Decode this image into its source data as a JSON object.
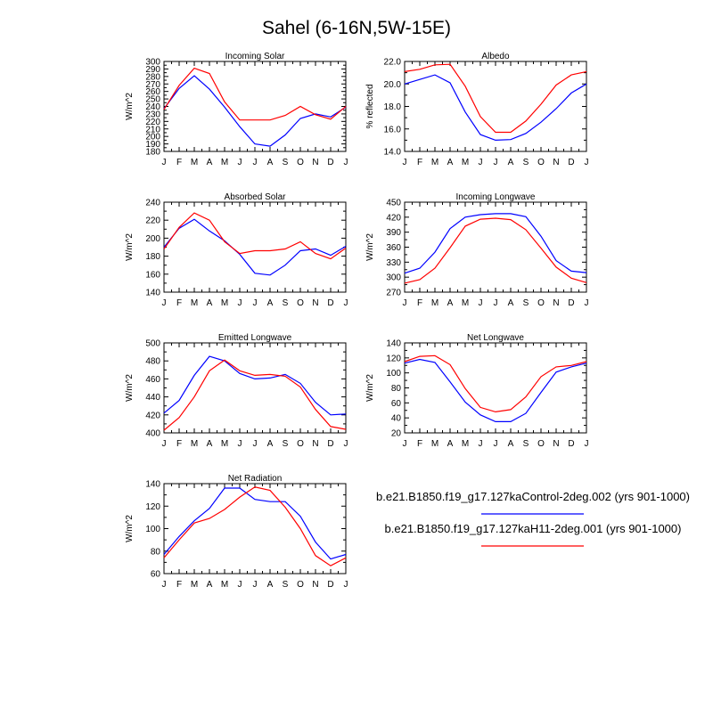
{
  "figure": {
    "title": "Sahel (6-16N,5W-15E)"
  },
  "legend": [
    {
      "label": "b.e21.B1850.f19_g17.127kaControl-2deg.002 (yrs 901-1000)",
      "color": "#0000ff"
    },
    {
      "label": "b.e21.B1850.f19_g17.127kaH11-2deg.001 (yrs 901-1000)",
      "color": "#ff0000"
    }
  ],
  "months": [
    "J",
    "F",
    "M",
    "A",
    "M",
    "J",
    "J",
    "A",
    "S",
    "O",
    "N",
    "D",
    "J"
  ],
  "chart_data": [
    {
      "type": "line",
      "title": "Incoming Solar",
      "ylabel": "W/m^2",
      "ylim": [
        180,
        300
      ],
      "yticks": [
        "180",
        "190",
        "200",
        "210",
        "220",
        "230",
        "240",
        "250",
        "260",
        "270",
        "280",
        "290",
        "300"
      ],
      "categories": [
        "J",
        "F",
        "M",
        "A",
        "M",
        "J",
        "J",
        "A",
        "S",
        "O",
        "N",
        "D",
        "J"
      ],
      "series": [
        {
          "color": "#0000ff",
          "values": [
            237,
            264,
            281,
            263,
            239,
            213,
            190,
            187,
            202,
            224,
            230,
            226,
            239
          ]
        },
        {
          "color": "#ff0000",
          "values": [
            236,
            268,
            291,
            284,
            246,
            222,
            222,
            222,
            228,
            240,
            229,
            223,
            240
          ]
        }
      ]
    },
    {
      "type": "line",
      "title": "Albedo",
      "ylabel": "% reflected",
      "ylim": [
        14,
        22
      ],
      "yticks": [
        "14.0",
        "16.0",
        "18.0",
        "20.0",
        "22.0"
      ],
      "categories": [
        "J",
        "F",
        "M",
        "A",
        "M",
        "J",
        "J",
        "A",
        "S",
        "O",
        "N",
        "D",
        "J"
      ],
      "series": [
        {
          "color": "#0000ff",
          "values": [
            20.0,
            20.4,
            20.8,
            20.1,
            17.5,
            15.5,
            15.0,
            15.05,
            15.6,
            16.6,
            17.8,
            19.2,
            20.0
          ]
        },
        {
          "color": "#ff0000",
          "values": [
            21.1,
            21.3,
            21.7,
            21.75,
            19.8,
            17.1,
            15.7,
            15.7,
            16.7,
            18.2,
            19.9,
            20.8,
            21.1
          ]
        }
      ]
    },
    {
      "type": "line",
      "title": "Absorbed Solar",
      "ylabel": "W/m^2",
      "ylim": [
        140,
        240
      ],
      "yticks": [
        "140",
        "160",
        "180",
        "200",
        "220",
        "240"
      ],
      "categories": [
        "J",
        "F",
        "M",
        "A",
        "M",
        "J",
        "J",
        "A",
        "S",
        "O",
        "N",
        "D",
        "J"
      ],
      "series": [
        {
          "color": "#0000ff",
          "values": [
            190,
            211,
            221,
            208,
            197,
            182,
            161,
            159,
            170,
            186,
            188,
            181,
            191
          ]
        },
        {
          "color": "#ff0000",
          "values": [
            188,
            212,
            228,
            220,
            196,
            183,
            186,
            186,
            188,
            196,
            183,
            177,
            189
          ]
        }
      ]
    },
    {
      "type": "line",
      "title": "Incoming Longwave",
      "ylabel": "W/m^2",
      "ylim": [
        270,
        450
      ],
      "yticks": [
        "270",
        "300",
        "330",
        "360",
        "390",
        "420",
        "450"
      ],
      "categories": [
        "J",
        "F",
        "M",
        "A",
        "M",
        "J",
        "J",
        "A",
        "S",
        "O",
        "N",
        "D",
        "J"
      ],
      "series": [
        {
          "color": "#0000ff",
          "values": [
            308,
            318,
            350,
            397,
            420,
            425,
            427,
            427,
            421,
            382,
            333,
            312,
            309
          ]
        },
        {
          "color": "#ff0000",
          "values": [
            288,
            295,
            318,
            359,
            402,
            416,
            418,
            415,
            395,
            358,
            320,
            298,
            289
          ]
        }
      ]
    },
    {
      "type": "line",
      "title": "Emitted Longwave",
      "ylabel": "W/m^2",
      "ylim": [
        400,
        500
      ],
      "yticks": [
        "400",
        "420",
        "440",
        "460",
        "480",
        "500"
      ],
      "categories": [
        "J",
        "F",
        "M",
        "A",
        "M",
        "J",
        "J",
        "A",
        "S",
        "O",
        "N",
        "D",
        "J"
      ],
      "series": [
        {
          "color": "#0000ff",
          "values": [
            422,
            436,
            464,
            485,
            480,
            466,
            460,
            461,
            465,
            455,
            434,
            420,
            421
          ]
        },
        {
          "color": "#ff0000",
          "values": [
            403,
            417,
            440,
            469,
            481,
            469,
            464,
            465,
            463,
            451,
            426,
            407,
            404
          ]
        }
      ]
    },
    {
      "type": "line",
      "title": "Net Longwave",
      "ylabel": "W/m^2",
      "ylim": [
        20,
        140
      ],
      "yticks": [
        "20",
        "40",
        "60",
        "80",
        "100",
        "120",
        "140"
      ],
      "categories": [
        "J",
        "F",
        "M",
        "A",
        "M",
        "J",
        "J",
        "A",
        "S",
        "O",
        "N",
        "D",
        "J"
      ],
      "series": [
        {
          "color": "#0000ff",
          "values": [
            113,
            118,
            114,
            88,
            61,
            44,
            35,
            35,
            46,
            74,
            101,
            108,
            113
          ]
        },
        {
          "color": "#ff0000",
          "values": [
            115,
            122,
            123,
            111,
            79,
            54,
            48,
            51,
            68,
            95,
            108,
            110,
            115
          ]
        }
      ]
    },
    {
      "type": "line",
      "title": "Net Radiation",
      "ylabel": "W/m^2",
      "ylim": [
        60,
        140
      ],
      "yticks": [
        "60",
        "80",
        "100",
        "120",
        "140"
      ],
      "categories": [
        "J",
        "F",
        "M",
        "A",
        "M",
        "J",
        "J",
        "A",
        "S",
        "O",
        "N",
        "D",
        "J"
      ],
      "series": [
        {
          "color": "#0000ff",
          "values": [
            77,
            93,
            107,
            118,
            136,
            136,
            126,
            124,
            124,
            111,
            88,
            73,
            77
          ]
        },
        {
          "color": "#ff0000",
          "values": [
            74,
            90,
            105,
            109,
            117,
            128,
            137,
            134,
            119,
            100,
            76,
            67,
            74
          ]
        }
      ]
    }
  ]
}
